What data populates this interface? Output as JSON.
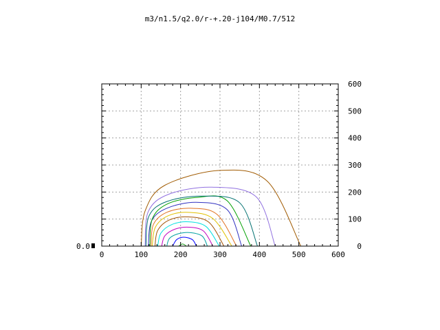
{
  "chart_data": {
    "type": "line",
    "title": "m3/n1.5/q2.0/r-+.20-j104/M0.7/512",
    "xlim": [
      0,
      600
    ],
    "ylim": [
      0,
      600
    ],
    "x_ticks": [
      "0",
      "100",
      "200",
      "300",
      "400",
      "500",
      "600"
    ],
    "y_ticks_right": [
      "0",
      "100",
      "200",
      "300",
      "400",
      "500",
      "600"
    ],
    "y_left_label": "0.0",
    "grid": true,
    "series": [
      {
        "color": "#1f9f1f",
        "points": [
          [
            195,
            0
          ],
          [
            205,
            8
          ],
          [
            215,
            0
          ]
        ]
      },
      {
        "color": "#0000ff",
        "points": [
          [
            180,
            0
          ],
          [
            190,
            24
          ],
          [
            208,
            33
          ],
          [
            230,
            24
          ],
          [
            240,
            0
          ]
        ]
      },
      {
        "color": "#00a0a0",
        "points": [
          [
            165,
            0
          ],
          [
            172,
            29
          ],
          [
            195,
            46
          ],
          [
            225,
            50
          ],
          [
            255,
            37
          ],
          [
            268,
            0
          ]
        ]
      },
      {
        "color": "#c000c0",
        "points": [
          [
            152,
            0
          ],
          [
            160,
            38
          ],
          [
            186,
            63
          ],
          [
            222,
            70
          ],
          [
            258,
            56
          ],
          [
            282,
            0
          ]
        ]
      },
      {
        "color": "#00e0e0",
        "points": [
          [
            142,
            0
          ],
          [
            150,
            48
          ],
          [
            178,
            80
          ],
          [
            220,
            90
          ],
          [
            265,
            72
          ],
          [
            298,
            0
          ]
        ]
      },
      {
        "color": "#a05000",
        "points": [
          [
            135,
            0
          ],
          [
            142,
            58
          ],
          [
            172,
            97
          ],
          [
            220,
            108
          ],
          [
            272,
            88
          ],
          [
            310,
            0
          ]
        ]
      },
      {
        "color": "#e0c000",
        "points": [
          [
            128,
            0
          ],
          [
            136,
            70
          ],
          [
            168,
            112
          ],
          [
            220,
            125
          ],
          [
            282,
            102
          ],
          [
            330,
            0
          ]
        ]
      },
      {
        "color": "#e07020",
        "points": [
          [
            125,
            0
          ],
          [
            131,
            80
          ],
          [
            165,
            125
          ],
          [
            225,
            140
          ],
          [
            292,
            118
          ],
          [
            342,
            0
          ]
        ]
      },
      {
        "color": "#3030c0",
        "points": [
          [
            118,
            0
          ],
          [
            126,
            92
          ],
          [
            165,
            140
          ],
          [
            240,
            162
          ],
          [
            318,
            135
          ],
          [
            355,
            0
          ]
        ]
      },
      {
        "color": "#00a000",
        "points": [
          [
            122,
            0
          ],
          [
            128,
            100
          ],
          [
            165,
            155
          ],
          [
            240,
            180
          ],
          [
            318,
            168
          ],
          [
            378,
            0
          ]
        ]
      },
      {
        "color": "#007070",
        "points": [
          [
            112,
            0
          ],
          [
            120,
            112
          ],
          [
            165,
            165
          ],
          [
            255,
            185
          ],
          [
            350,
            160
          ],
          [
            395,
            0
          ]
        ]
      },
      {
        "color": "#9070e0",
        "points": [
          [
            110,
            0
          ],
          [
            118,
            128
          ],
          [
            170,
            192
          ],
          [
            280,
            218
          ],
          [
            392,
            182
          ],
          [
            440,
            0
          ]
        ]
      },
      {
        "color": "#a05a00",
        "points": [
          [
            100,
            0
          ],
          [
            110,
            130
          ],
          [
            160,
            225
          ],
          [
            300,
            280
          ],
          [
            420,
            240
          ],
          [
            505,
            0
          ]
        ]
      }
    ]
  }
}
